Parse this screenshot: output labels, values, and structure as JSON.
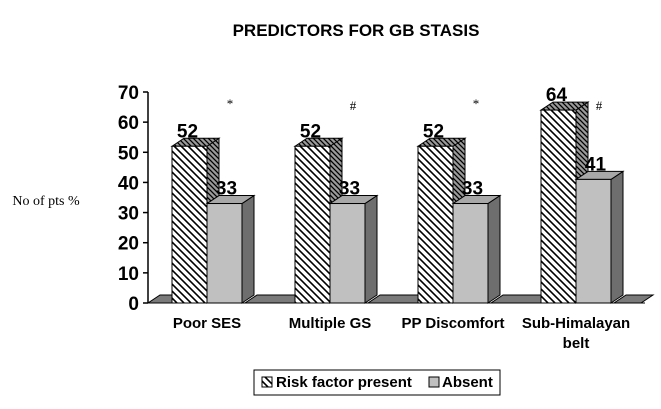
{
  "chart_data": {
    "type": "bar",
    "title": "PREDICTORS FOR GB STASIS",
    "ylabel": "No of pts %",
    "xlabel": "",
    "categories": [
      "Poor SES",
      "Multiple GS",
      "PP Discomfort",
      "Sub-Himalayan belt"
    ],
    "series": [
      {
        "name": "Risk factor present",
        "values": [
          52,
          52,
          52,
          64
        ],
        "pattern": "diagonal-hatch"
      },
      {
        "name": "Absent",
        "values": [
          33,
          33,
          33,
          41
        ],
        "color": "#c0c0c0"
      }
    ],
    "annotations": [
      "*",
      "#",
      "*",
      "#"
    ],
    "ylim": [
      0,
      70
    ],
    "yticks": [
      0,
      10,
      20,
      30,
      40,
      50,
      60,
      70
    ],
    "grid": false,
    "legend_position": "bottom-center",
    "three_d": true
  }
}
